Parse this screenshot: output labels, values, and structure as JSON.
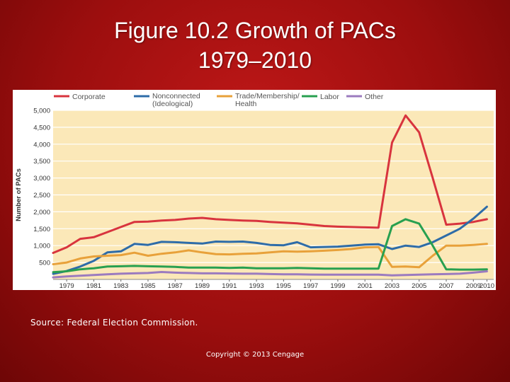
{
  "slide": {
    "title_line1": "Figure 10.2  Growth of PACs",
    "title_line2": "1979–2010",
    "source": "Source: Federal Election Commission.",
    "copyright": "Copyright © 2013 Cengage"
  },
  "chart_data": {
    "type": "line",
    "title": "",
    "xlabel": "",
    "ylabel": "Number of PACs",
    "ylim": [
      0,
      5000
    ],
    "yticks": [
      500,
      1000,
      1500,
      2000,
      2500,
      3000,
      3500,
      4000,
      4500,
      5000
    ],
    "ytick_labels": [
      "500",
      "1,000",
      "1,500",
      "2,000",
      "2,500",
      "3,000",
      "3,500",
      "4,000",
      "4,500",
      "5,000"
    ],
    "xlim": [
      1978,
      2010.5
    ],
    "xticks": [
      1979,
      1981,
      1983,
      1985,
      1987,
      1989,
      1991,
      1993,
      1995,
      1997,
      1999,
      2001,
      2003,
      2005,
      2007,
      2009,
      2010
    ],
    "grid": true,
    "legend": "top",
    "series": [
      {
        "name": "Corporate",
        "color": "#d8343e",
        "x": [
          1978,
          1979,
          1980,
          1981,
          1982,
          1983,
          1984,
          1985,
          1986,
          1987,
          1988,
          1989,
          1990,
          1991,
          1992,
          1993,
          1994,
          1995,
          1996,
          1997,
          1998,
          1999,
          2000,
          2001,
          2002,
          2003,
          2004,
          2005,
          2006,
          2007,
          2008,
          2009,
          2010
        ],
        "values": [
          785,
          950,
          1200,
          1250,
          1400,
          1550,
          1700,
          1710,
          1740,
          1760,
          1800,
          1820,
          1780,
          1760,
          1740,
          1730,
          1700,
          1680,
          1660,
          1620,
          1580,
          1560,
          1550,
          1540,
          1530,
          4050,
          4850,
          4350,
          3000,
          1620,
          1650,
          1700,
          1780
        ]
      },
      {
        "name": "Nonconnected (Ideological)",
        "color": "#2e6ca8",
        "x": [
          1978,
          1979,
          1980,
          1981,
          1982,
          1983,
          1984,
          1985,
          1986,
          1987,
          1988,
          1989,
          1990,
          1991,
          1992,
          1993,
          1994,
          1995,
          1996,
          1997,
          1998,
          1999,
          2000,
          2001,
          2002,
          2003,
          2004,
          2005,
          2006,
          2007,
          2008,
          2009,
          2010
        ],
        "values": [
          165,
          250,
          380,
          550,
          800,
          830,
          1050,
          1020,
          1110,
          1100,
          1080,
          1060,
          1120,
          1110,
          1120,
          1080,
          1020,
          1010,
          1100,
          950,
          960,
          970,
          1000,
          1030,
          1040,
          900,
          1000,
          960,
          1100,
          1300,
          1500,
          1800,
          2150
        ]
      },
      {
        "name": "Trade/Membership/ Health",
        "color": "#e8a13a",
        "x": [
          1978,
          1979,
          1980,
          1981,
          1982,
          1983,
          1984,
          1985,
          1986,
          1987,
          1988,
          1989,
          1990,
          1991,
          1992,
          1993,
          1994,
          1995,
          1996,
          1997,
          1998,
          1999,
          2000,
          2001,
          2002,
          2003,
          2004,
          2005,
          2006,
          2007,
          2008,
          2009,
          2010
        ],
        "values": [
          450,
          500,
          620,
          680,
          700,
          720,
          790,
          700,
          760,
          800,
          860,
          800,
          750,
          740,
          760,
          770,
          800,
          830,
          820,
          830,
          850,
          870,
          900,
          950,
          960,
          370,
          380,
          360,
          700,
          1000,
          1000,
          1020,
          1050
        ]
      },
      {
        "name": "Labor",
        "color": "#28a050",
        "x": [
          1978,
          1979,
          1980,
          1981,
          1982,
          1983,
          1984,
          1985,
          1986,
          1987,
          1988,
          1989,
          1990,
          1991,
          1992,
          1993,
          1994,
          1995,
          1996,
          1997,
          1998,
          1999,
          2000,
          2001,
          2002,
          2003,
          2004,
          2005,
          2006,
          2007,
          2008,
          2009,
          2010
        ],
        "values": [
          215,
          240,
          300,
          330,
          380,
          390,
          400,
          390,
          380,
          370,
          350,
          350,
          350,
          340,
          350,
          330,
          330,
          330,
          340,
          330,
          320,
          320,
          320,
          320,
          320,
          1580,
          1780,
          1650,
          1000,
          300,
          290,
          290,
          300
        ]
      },
      {
        "name": "Labor-2",
        "legend_label": "Other",
        "color": "#9b7bbf",
        "x": [
          1978,
          1979,
          1980,
          1981,
          1982,
          1983,
          1984,
          1985,
          1986,
          1987,
          1988,
          1989,
          1990,
          1991,
          1992,
          1993,
          1994,
          1995,
          1996,
          1997,
          1998,
          1999,
          2000,
          2001,
          2002,
          2003,
          2004,
          2005,
          2006,
          2007,
          2008,
          2009,
          2010
        ],
        "values": [
          60,
          90,
          110,
          130,
          150,
          170,
          180,
          190,
          220,
          200,
          190,
          180,
          180,
          175,
          170,
          170,
          160,
          150,
          150,
          145,
          140,
          140,
          140,
          140,
          140,
          120,
          130,
          140,
          150,
          160,
          170,
          200,
          240
        ]
      }
    ]
  }
}
